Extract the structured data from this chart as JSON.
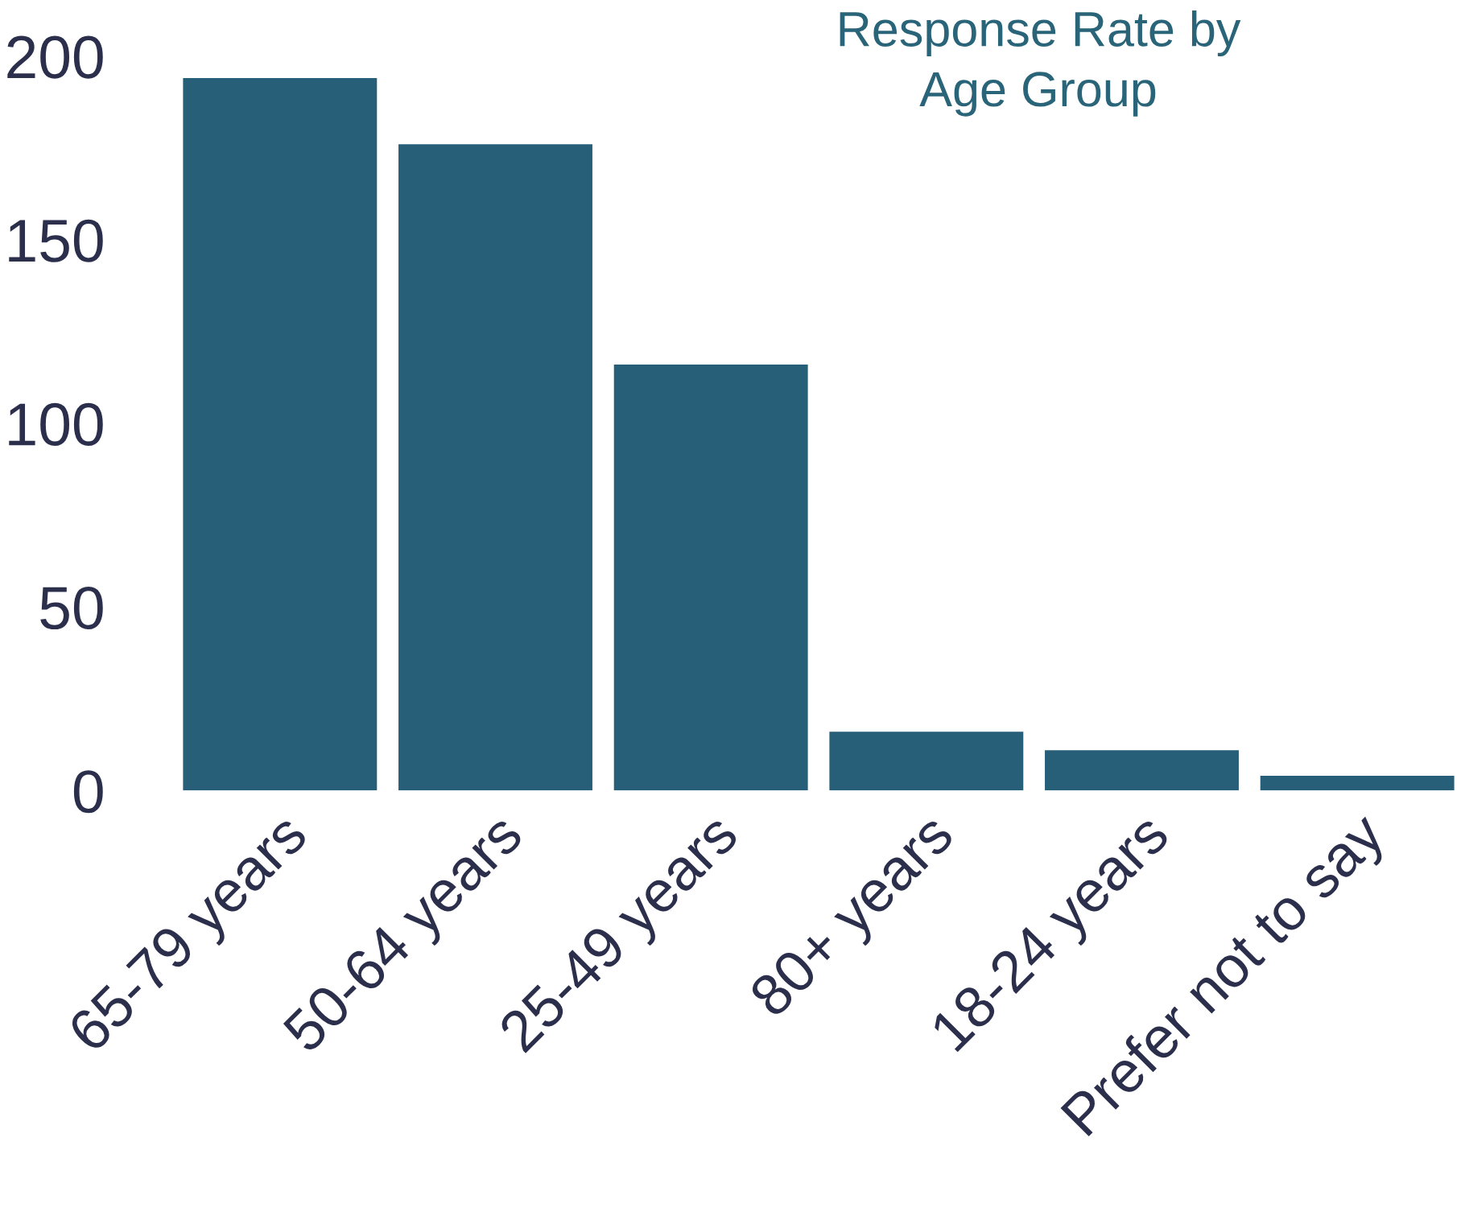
{
  "chart_data": {
    "type": "bar",
    "title": "Response Rate by\nAge Group",
    "categories": [
      "65-79 years",
      "50-64 years",
      "25-49 years",
      "80+ years",
      "18-24 years",
      "Prefer not to say"
    ],
    "values": [
      194,
      176,
      116,
      16,
      11,
      4
    ],
    "color": "#275e78",
    "ylim": [
      0,
      200
    ],
    "yticks": [
      0,
      50,
      100,
      150,
      200
    ],
    "grid": false,
    "legend": false
  }
}
